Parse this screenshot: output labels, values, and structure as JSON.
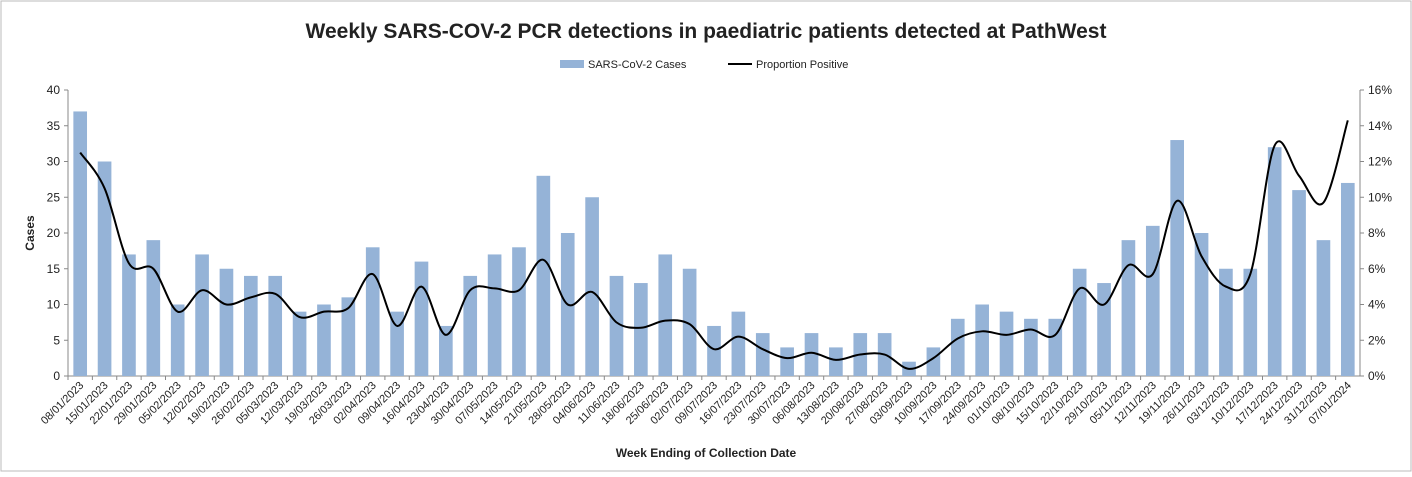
{
  "chart_data": {
    "type": "bar-line",
    "title": "Weekly SARS-COV-2 PCR detections in paediatric patients detected at PathWest",
    "x_label": "Week Ending of Collection Date",
    "y_label": "Cases",
    "categories": [
      "08/01/2023",
      "15/01/2023",
      "22/01/2023",
      "29/01/2023",
      "05/02/2023",
      "12/02/2023",
      "19/02/2023",
      "26/02/2023",
      "05/03/2023",
      "12/03/2023",
      "19/03/2023",
      "26/03/2023",
      "02/04/2023",
      "09/04/2023",
      "16/04/2023",
      "23/04/2023",
      "30/04/2023",
      "07/05/2023",
      "14/05/2023",
      "21/05/2023",
      "28/05/2023",
      "04/06/2023",
      "11/06/2023",
      "18/06/2023",
      "25/06/2023",
      "02/07/2023",
      "09/07/2023",
      "16/07/2023",
      "23/07/2023",
      "30/07/2023",
      "06/08/2023",
      "13/08/2023",
      "20/08/2023",
      "27/08/2023",
      "03/09/2023",
      "10/09/2023",
      "17/09/2023",
      "24/09/2023",
      "01/10/2023",
      "08/10/2023",
      "15/10/2023",
      "22/10/2023",
      "29/10/2023",
      "05/11/2023",
      "12/11/2023",
      "19/11/2023",
      "26/11/2023",
      "03/12/2023",
      "10/12/2023",
      "17/12/2023",
      "24/12/2023",
      "31/12/2023",
      "07/01/2024"
    ],
    "series": [
      {
        "name": "SARS-CoV-2 Cases",
        "type": "bar",
        "color": "#95b3d7",
        "values": [
          37,
          30,
          17,
          19,
          10,
          17,
          15,
          14,
          14,
          9,
          10,
          11,
          18,
          9,
          16,
          7,
          14,
          17,
          18,
          28,
          20,
          25,
          14,
          13,
          17,
          15,
          7,
          9,
          6,
          4,
          6,
          4,
          6,
          6,
          2,
          4,
          8,
          10,
          9,
          8,
          8,
          15,
          13,
          19,
          21,
          33,
          20,
          15,
          15,
          32,
          26,
          19,
          27
        ]
      },
      {
        "name": "Proportion Positive",
        "type": "line",
        "axis": "y2",
        "color": "#000000",
        "values": [
          12.5,
          10.5,
          6.3,
          6.0,
          3.6,
          4.8,
          4.0,
          4.4,
          4.6,
          3.3,
          3.6,
          3.8,
          5.7,
          2.8,
          5.0,
          2.3,
          4.8,
          4.9,
          4.8,
          6.5,
          4.0,
          4.7,
          3.0,
          2.7,
          3.1,
          2.9,
          1.5,
          2.2,
          1.5,
          1.0,
          1.3,
          0.9,
          1.2,
          1.2,
          0.4,
          1.0,
          2.1,
          2.5,
          2.3,
          2.6,
          2.3,
          4.9,
          4.0,
          6.2,
          5.7,
          9.8,
          6.7,
          5.0,
          5.7,
          12.9,
          11.2,
          9.7,
          14.3
        ]
      }
    ],
    "ylim": [
      0,
      40
    ],
    "yticks": [
      0,
      5,
      10,
      15,
      20,
      25,
      30,
      35,
      40
    ],
    "y2lim": [
      0,
      16
    ],
    "y2ticks": [
      {
        "value": 0,
        "label": "0%"
      },
      {
        "value": 2,
        "label": "2%"
      },
      {
        "value": 4,
        "label": "4%"
      },
      {
        "value": 6,
        "label": "6%"
      },
      {
        "value": 8,
        "label": "8%"
      },
      {
        "value": 10,
        "label": "10%"
      },
      {
        "value": 12,
        "label": "12%"
      },
      {
        "value": 14,
        "label": "14%"
      },
      {
        "value": 16,
        "label": "16%"
      }
    ],
    "legend": "top",
    "grid": false
  }
}
